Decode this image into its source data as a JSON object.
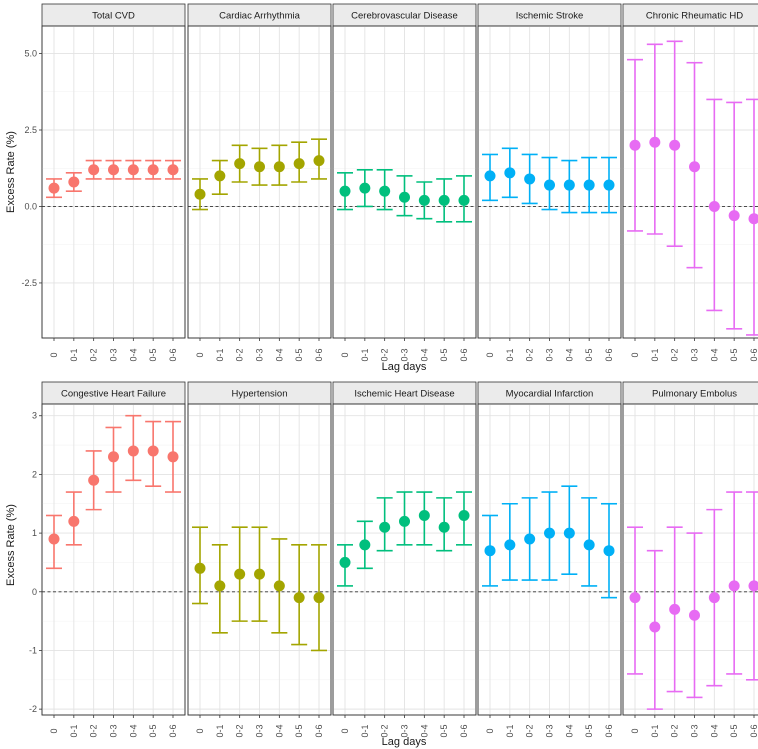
{
  "chart_data": [
    {
      "type": "scatter",
      "facet_row": "top",
      "ylabel": "Excess Rate (%)",
      "xlabel": "Lag days",
      "x": [
        "0",
        "0-1",
        "0-2",
        "0-3",
        "0-4",
        "0-5",
        "0-6"
      ],
      "ylim": [
        -4.3,
        5.9
      ],
      "yticks": [
        5.0,
        2.5,
        0.0,
        -2.5
      ],
      "ytick_labels": [
        "5.0",
        "2.5",
        "0.0",
        "-2.5"
      ],
      "grid": true,
      "reference_line": 0,
      "series": [
        {
          "name": "Total CVD",
          "color": "#F8766D",
          "values": [
            0.6,
            0.8,
            1.2,
            1.2,
            1.2,
            1.2,
            1.2
          ],
          "lower": [
            0.3,
            0.5,
            0.9,
            0.9,
            0.9,
            0.9,
            0.9
          ],
          "upper": [
            0.9,
            1.1,
            1.5,
            1.5,
            1.5,
            1.5,
            1.5
          ]
        },
        {
          "name": "Cardiac Arrhythmia",
          "color": "#A3A500",
          "values": [
            0.4,
            1.0,
            1.4,
            1.3,
            1.3,
            1.4,
            1.5
          ],
          "lower": [
            -0.1,
            0.4,
            0.8,
            0.7,
            0.7,
            0.8,
            0.9
          ],
          "upper": [
            0.9,
            1.5,
            2.0,
            1.9,
            2.0,
            2.1,
            2.2
          ]
        },
        {
          "name": "Cerebrovascular Disease",
          "color": "#00BF7D",
          "values": [
            0.5,
            0.6,
            0.5,
            0.3,
            0.2,
            0.2,
            0.2
          ],
          "lower": [
            -0.1,
            0.0,
            -0.1,
            -0.3,
            -0.4,
            -0.5,
            -0.5
          ],
          "upper": [
            1.1,
            1.2,
            1.2,
            1.0,
            0.8,
            0.9,
            1.0
          ]
        },
        {
          "name": "Ischemic Stroke",
          "color": "#00B0F6",
          "values": [
            1.0,
            1.1,
            0.9,
            0.7,
            0.7,
            0.7,
            0.7
          ],
          "lower": [
            0.2,
            0.3,
            0.1,
            -0.1,
            -0.2,
            -0.2,
            -0.2
          ],
          "upper": [
            1.7,
            1.9,
            1.7,
            1.6,
            1.5,
            1.6,
            1.6
          ]
        },
        {
          "name": "Chronic Rheumatic HD",
          "color": "#E76BF3",
          "values": [
            2.0,
            2.1,
            2.0,
            1.3,
            0.0,
            -0.3,
            -0.4
          ],
          "lower": [
            -0.8,
            -0.9,
            -1.3,
            -2.0,
            -3.4,
            -4.0,
            -4.2
          ],
          "upper": [
            4.8,
            5.3,
            5.4,
            4.7,
            3.5,
            3.4,
            3.5
          ]
        }
      ]
    },
    {
      "type": "scatter",
      "facet_row": "bottom",
      "ylabel": "Excess Rate (%)",
      "xlabel": "Lag days",
      "x": [
        "0",
        "0-1",
        "0-2",
        "0-3",
        "0-4",
        "0-5",
        "0-6"
      ],
      "ylim": [
        -2.1,
        3.2
      ],
      "yticks": [
        3,
        2,
        1,
        0,
        -1,
        -2
      ],
      "ytick_labels": [
        "3",
        "2",
        "1",
        "0",
        "-1",
        "-2"
      ],
      "grid": true,
      "reference_line": 0,
      "series": [
        {
          "name": "Congestive Heart Failure",
          "color": "#F8766D",
          "values": [
            0.9,
            1.2,
            1.9,
            2.3,
            2.4,
            2.4,
            2.3
          ],
          "lower": [
            0.4,
            0.8,
            1.4,
            1.7,
            1.9,
            1.8,
            1.7
          ],
          "upper": [
            1.3,
            1.7,
            2.4,
            2.8,
            3.0,
            2.9,
            2.9
          ]
        },
        {
          "name": "Hypertension",
          "color": "#A3A500",
          "values": [
            0.4,
            0.1,
            0.3,
            0.3,
            0.1,
            -0.1,
            -0.1
          ],
          "lower": [
            -0.2,
            -0.7,
            -0.5,
            -0.5,
            -0.7,
            -0.9,
            -1.0
          ],
          "upper": [
            1.1,
            0.8,
            1.1,
            1.1,
            0.9,
            0.8,
            0.8
          ]
        },
        {
          "name": "Ischemic Heart Disease",
          "color": "#00BF7D",
          "values": [
            0.5,
            0.8,
            1.1,
            1.2,
            1.3,
            1.1,
            1.3
          ],
          "lower": [
            0.1,
            0.4,
            0.7,
            0.8,
            0.8,
            0.7,
            0.8
          ],
          "upper": [
            0.8,
            1.2,
            1.6,
            1.7,
            1.7,
            1.6,
            1.7
          ]
        },
        {
          "name": "Myocardial Infarction",
          "color": "#00B0F6",
          "values": [
            0.7,
            0.8,
            0.9,
            1.0,
            1.0,
            0.8,
            0.7
          ],
          "lower": [
            0.1,
            0.2,
            0.2,
            0.2,
            0.3,
            0.1,
            -0.1
          ],
          "upper": [
            1.3,
            1.5,
            1.6,
            1.7,
            1.8,
            1.6,
            1.5
          ]
        },
        {
          "name": "Pulmonary Embolus",
          "color": "#E76BF3",
          "values": [
            -0.1,
            -0.6,
            -0.3,
            -0.4,
            -0.1,
            0.1,
            0.1
          ],
          "lower": [
            -1.4,
            -2.0,
            -1.7,
            -1.8,
            -1.6,
            -1.4,
            -1.5
          ],
          "upper": [
            1.1,
            0.7,
            1.1,
            1.0,
            1.4,
            1.7,
            1.7
          ]
        }
      ]
    }
  ]
}
